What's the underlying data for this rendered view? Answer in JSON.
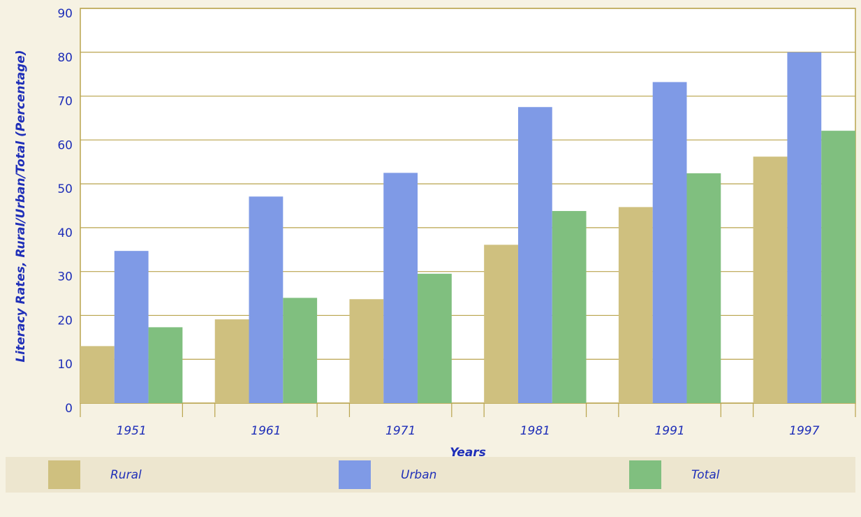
{
  "chart_data": {
    "type": "bar",
    "y_label": "Literacy Rates, Rural/Urban/Total (Percentage)",
    "x_label": "Years",
    "categories": [
      "1951",
      "1961",
      "1971",
      "1981",
      "1991",
      "1997"
    ],
    "series": [
      {
        "name": "Rural",
        "color": "#cfc07f",
        "values": [
          13,
          19.1,
          23.7,
          36.1,
          44.7,
          56.2
        ]
      },
      {
        "name": "Urban",
        "color": "#7f9ae6",
        "values": [
          34.7,
          47.1,
          52.5,
          67.5,
          73.2,
          80
        ]
      },
      {
        "name": "Total",
        "color": "#80bf7f",
        "values": [
          17.3,
          24,
          29.5,
          43.8,
          52.4,
          62.1
        ]
      }
    ],
    "ylim": [
      0,
      90
    ],
    "yticks": [
      0,
      10,
      20,
      30,
      40,
      50,
      60,
      70,
      80,
      90
    ],
    "grid": true
  }
}
